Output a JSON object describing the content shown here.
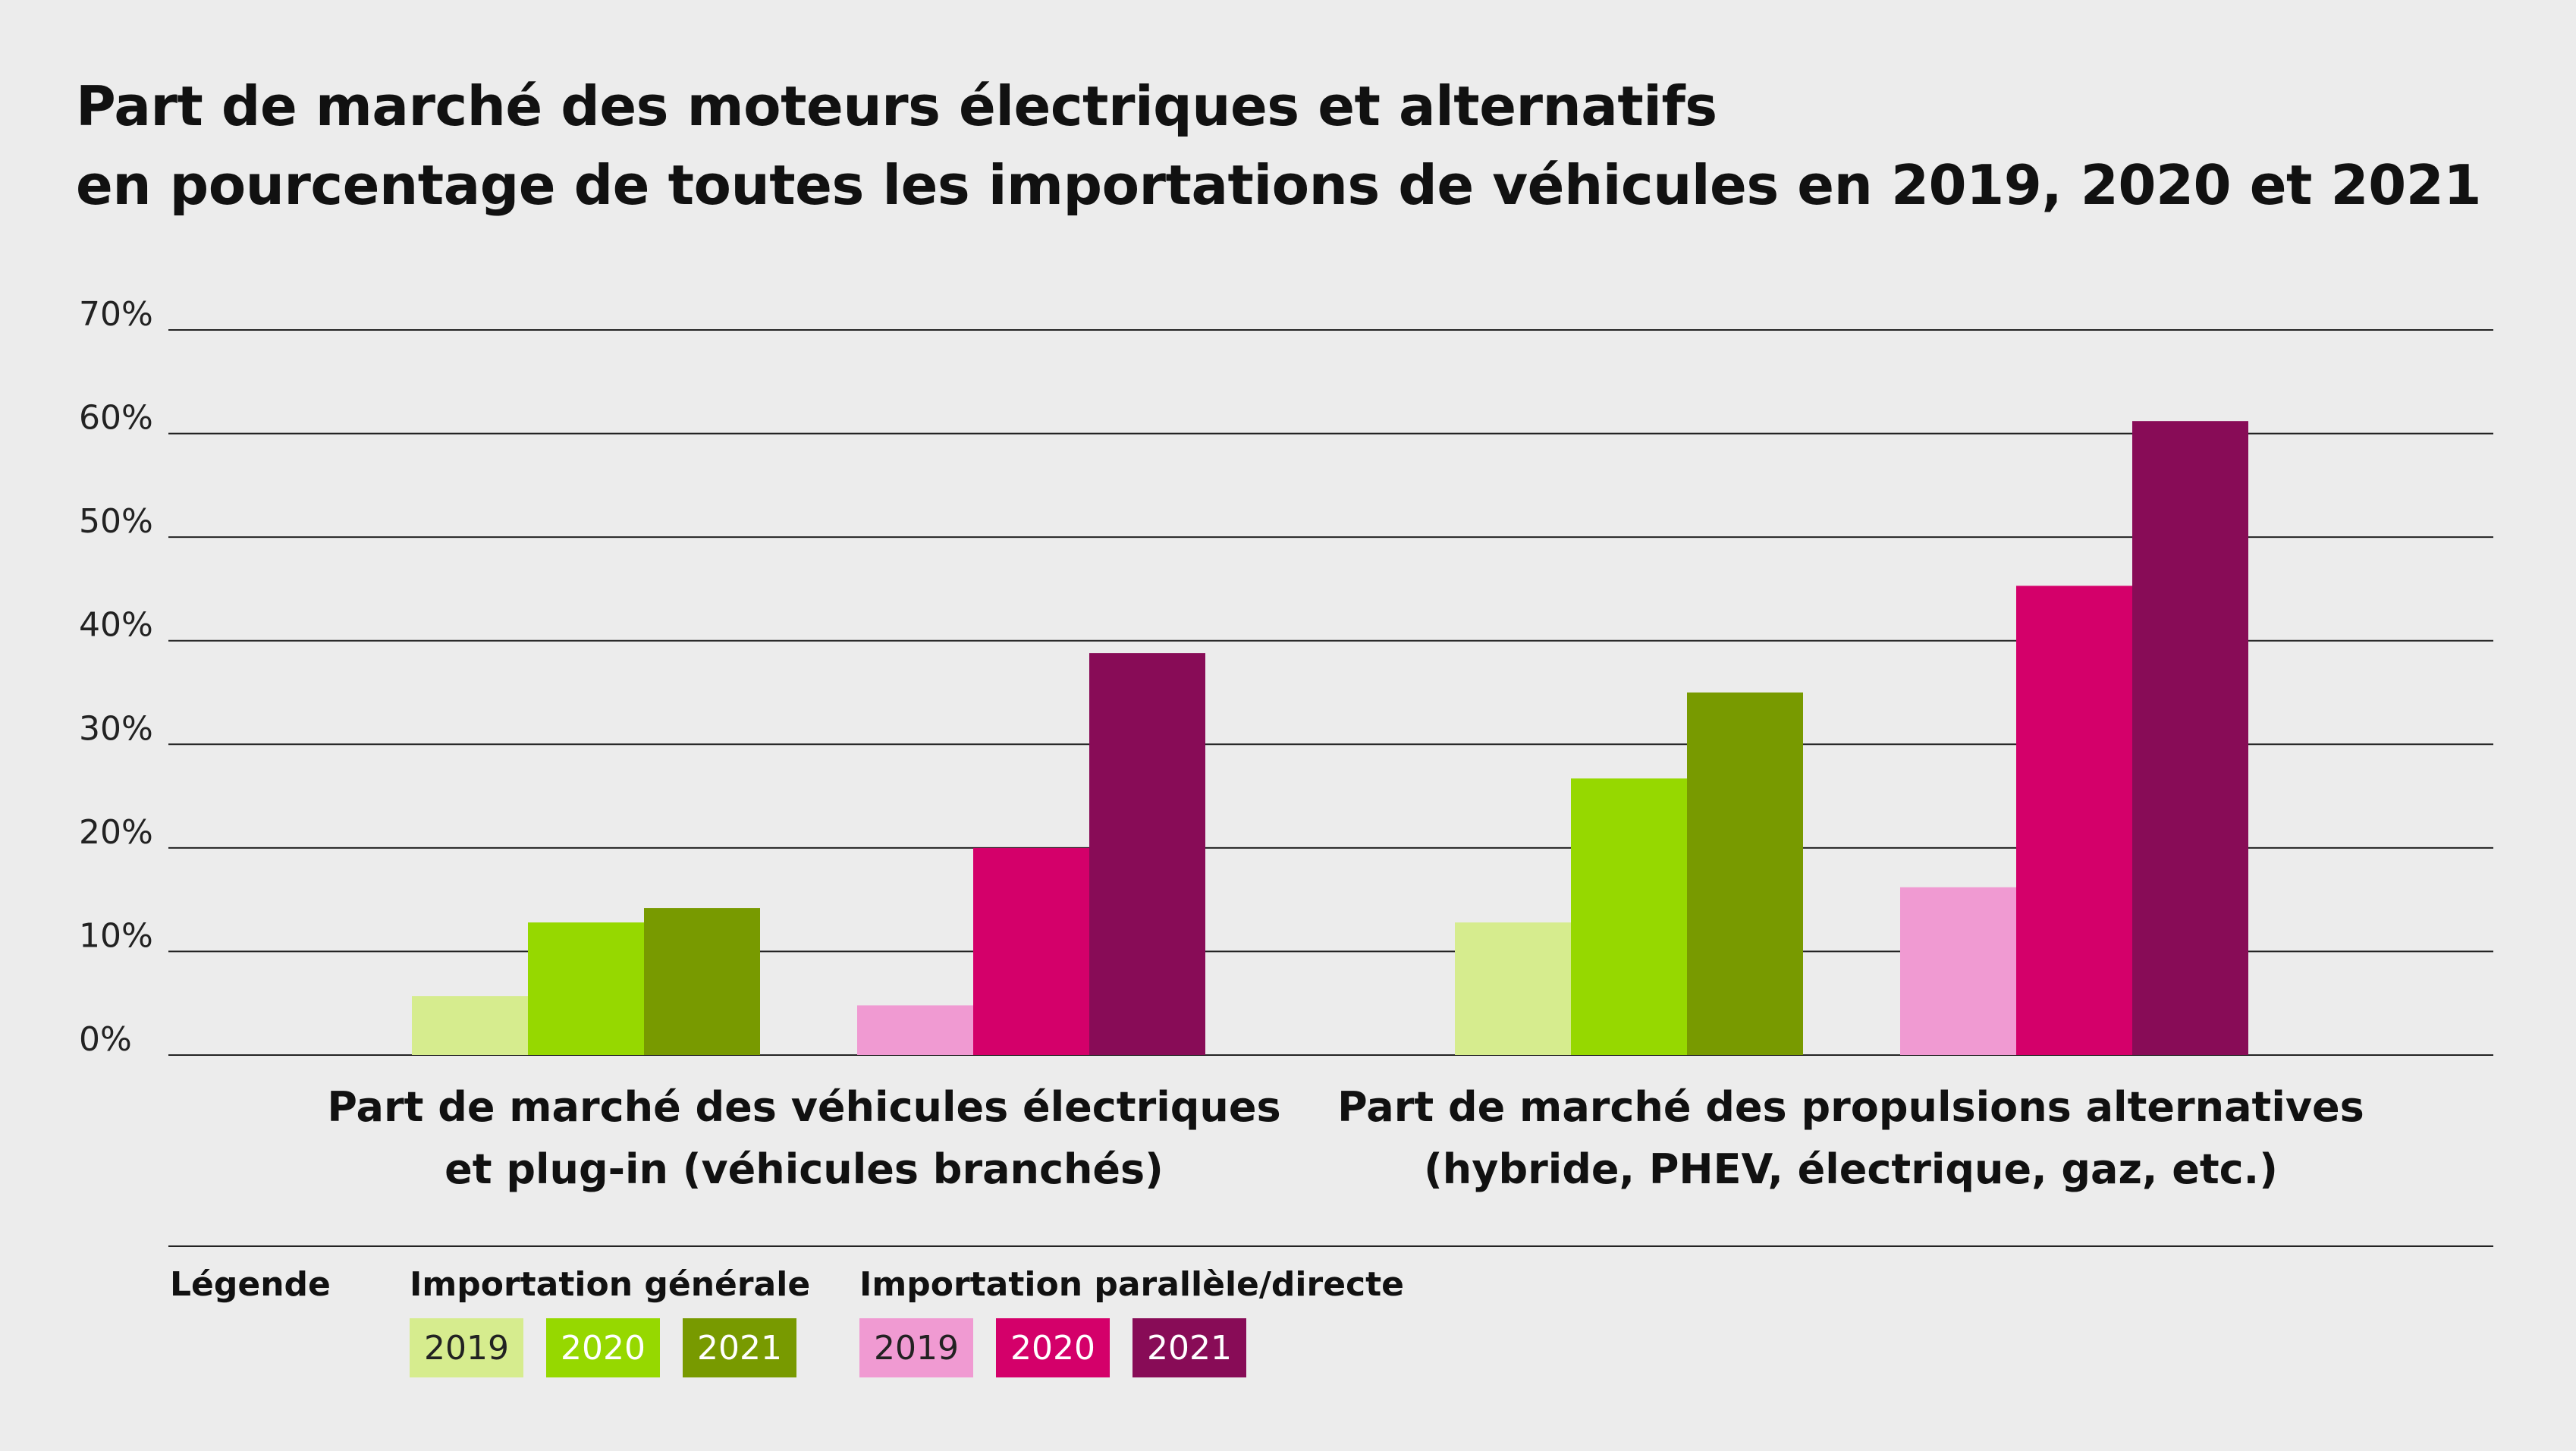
{
  "title": {
    "line1": "Part de marché des moteurs électriques et alternatifs",
    "line2": "en pourcentage de toutes les importations de véhicules en 2019, 2020 et 2021"
  },
  "chart_data": {
    "type": "bar",
    "ylim": [
      0,
      70
    ],
    "yticks": [
      "0%",
      "10%",
      "20%",
      "30%",
      "40%",
      "50%",
      "60%",
      "70%"
    ],
    "grid": true,
    "categories": [
      [
        "Part de marché des véhicules électriques",
        "et plug-in (véhicules branchés)"
      ],
      [
        "Part de marché des propulsions alternatives",
        "(hybride, PHEV, électrique, gaz, etc.)"
      ]
    ],
    "groups": [
      {
        "name": "Importation générale",
        "series": [
          {
            "name": "2019",
            "color": "#d6ec8e",
            "values": [
              5.7,
              12.8
            ]
          },
          {
            "name": "2020",
            "color": "#96d800",
            "values": [
              12.8,
              26.7
            ]
          },
          {
            "name": "2021",
            "color": "#789a00",
            "values": [
              14.2,
              35.0
            ]
          }
        ]
      },
      {
        "name": "Importation parallèle/directe",
        "series": [
          {
            "name": "2019",
            "color": "#f09ad2",
            "values": [
              4.8,
              16.2
            ]
          },
          {
            "name": "2020",
            "color": "#d4006a",
            "values": [
              20.0,
              45.3
            ]
          },
          {
            "name": "2021",
            "color": "#880c57",
            "values": [
              38.8,
              61.2
            ]
          }
        ]
      }
    ]
  },
  "legend": {
    "title": "Légende",
    "group1_title": "Importation générale",
    "group2_title": "Importation parallèle/directe"
  }
}
